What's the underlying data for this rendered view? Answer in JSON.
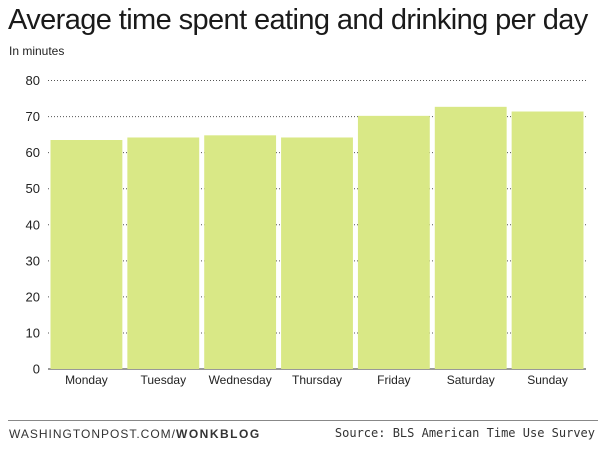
{
  "chart_data": {
    "type": "bar",
    "title": "Average time spent eating and drinking per day",
    "ylabel": "In minutes",
    "xlabel": "",
    "categories": [
      "Monday",
      "Tuesday",
      "Wednesday",
      "Thursday",
      "Friday",
      "Saturday",
      "Sunday"
    ],
    "values": [
      63.5,
      64.2,
      64.8,
      64.2,
      70.2,
      72.7,
      71.4
    ],
    "ylim": [
      0,
      80
    ],
    "yticks": [
      "0",
      "10",
      "20",
      "30",
      "40",
      "50",
      "60",
      "70",
      "80"
    ],
    "grid": true,
    "bar_color": "#d9e886"
  },
  "footer": {
    "site": "WASHINGTONPOST.COM/",
    "brand": "WONKBLOG",
    "source": "Source: BLS American Time Use Survey"
  }
}
